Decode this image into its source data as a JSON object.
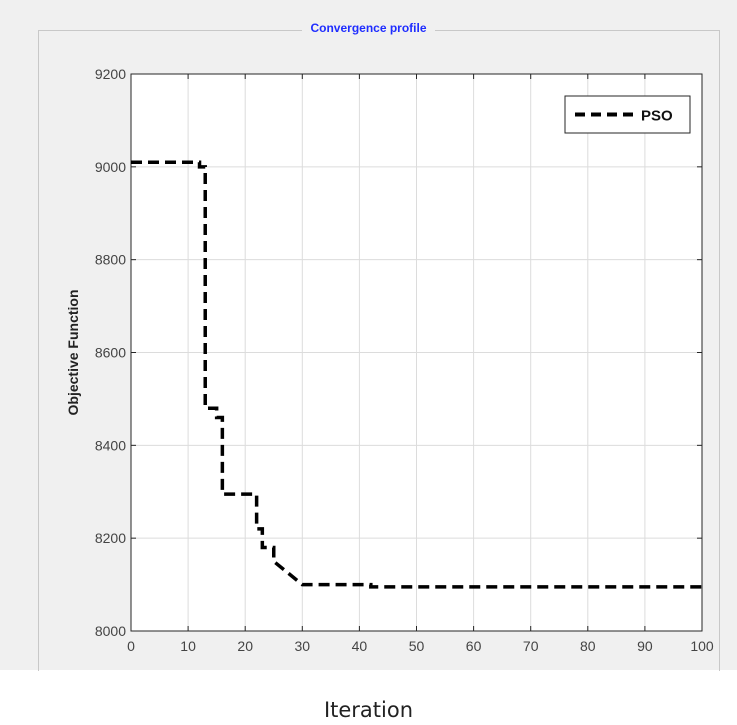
{
  "panel": {
    "title": "Convergence profile",
    "title_color": "#1f2dff"
  },
  "caption": "Iteration",
  "chart_data": {
    "type": "line",
    "title": "",
    "xlabel": "",
    "ylabel": "Objective Function",
    "xlim": [
      0,
      100
    ],
    "ylim": [
      8000,
      9200
    ],
    "x_ticks": [
      0,
      10,
      20,
      30,
      40,
      50,
      60,
      70,
      80,
      90,
      100
    ],
    "y_ticks": [
      8000,
      8200,
      8400,
      8600,
      8800,
      9000,
      9200
    ],
    "grid": true,
    "legend_position": "top-right",
    "series": [
      {
        "name": "PSO",
        "color": "#000000",
        "line_style": "dashed",
        "x": [
          0,
          12,
          12,
          13,
          13,
          15,
          15,
          16,
          16,
          22,
          22,
          23,
          23,
          25,
          25,
          30,
          30,
          42,
          42,
          100
        ],
        "y": [
          9010,
          9010,
          9000,
          9000,
          8480,
          8480,
          8460,
          8460,
          8295,
          8295,
          8220,
          8220,
          8180,
          8180,
          8150,
          8100,
          8100,
          8100,
          8095,
          8095
        ]
      }
    ]
  }
}
